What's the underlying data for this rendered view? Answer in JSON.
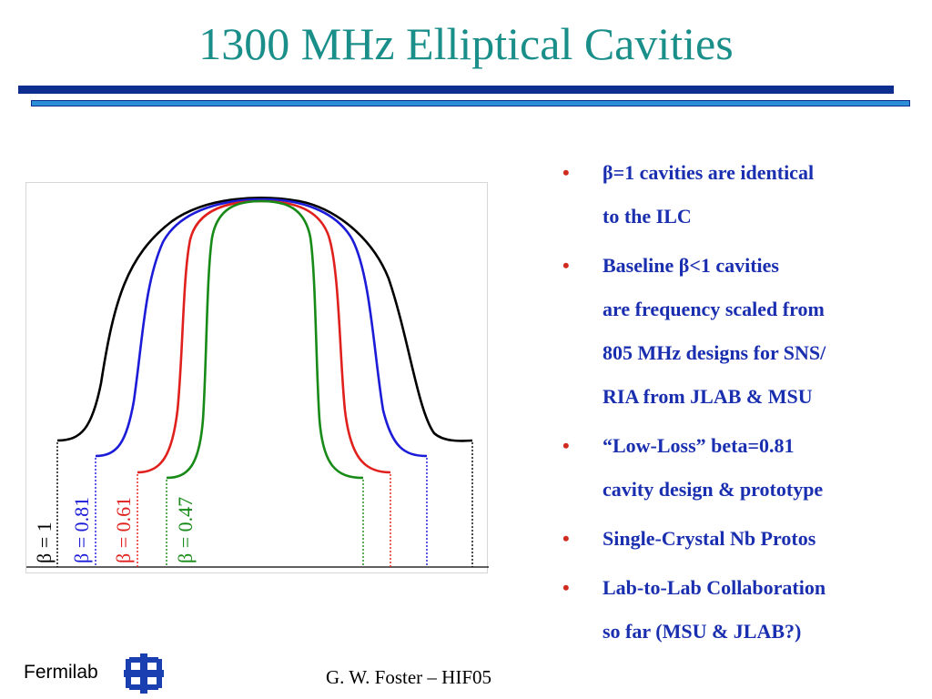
{
  "slide": {
    "title": "1300 MHz Elliptical Cavities"
  },
  "figure": {
    "labels": [
      {
        "text": "β = 1",
        "color": "#000000"
      },
      {
        "text": "β = 0.81",
        "color": "#1b1bd8"
      },
      {
        "text": "β = 0.61",
        "color": "#e0201c"
      },
      {
        "text": "β = 0.47",
        "color": "#178a17"
      }
    ]
  },
  "bullets": [
    {
      "text": "β=1 cavities are identical\nto the ILC"
    },
    {
      "text": "Baseline β<1 cavities\nare frequency scaled from\n805 MHz designs for SNS/\nRIA from JLAB & MSU"
    },
    {
      "text": "“Low-Loss” beta=0.81\ncavity design & prototype"
    },
    {
      "text": "Single-Crystal Nb Protos"
    },
    {
      "text": "Lab-to-Lab Collaboration\nso far (MSU & JLAB?)"
    }
  ],
  "bullet_marker": "•",
  "footer": {
    "logo_text": "Fermilab",
    "logo_icon": "fermilab-logo-icon",
    "credit": "G. W. Foster – HIF05"
  },
  "colors": {
    "title": "#1a8f8a",
    "rule_dark": "#0d2d8f",
    "rule_light": "#2b8fd6",
    "bullet_text": "#1a2fb0",
    "bullet_marker": "#d12b1f"
  }
}
